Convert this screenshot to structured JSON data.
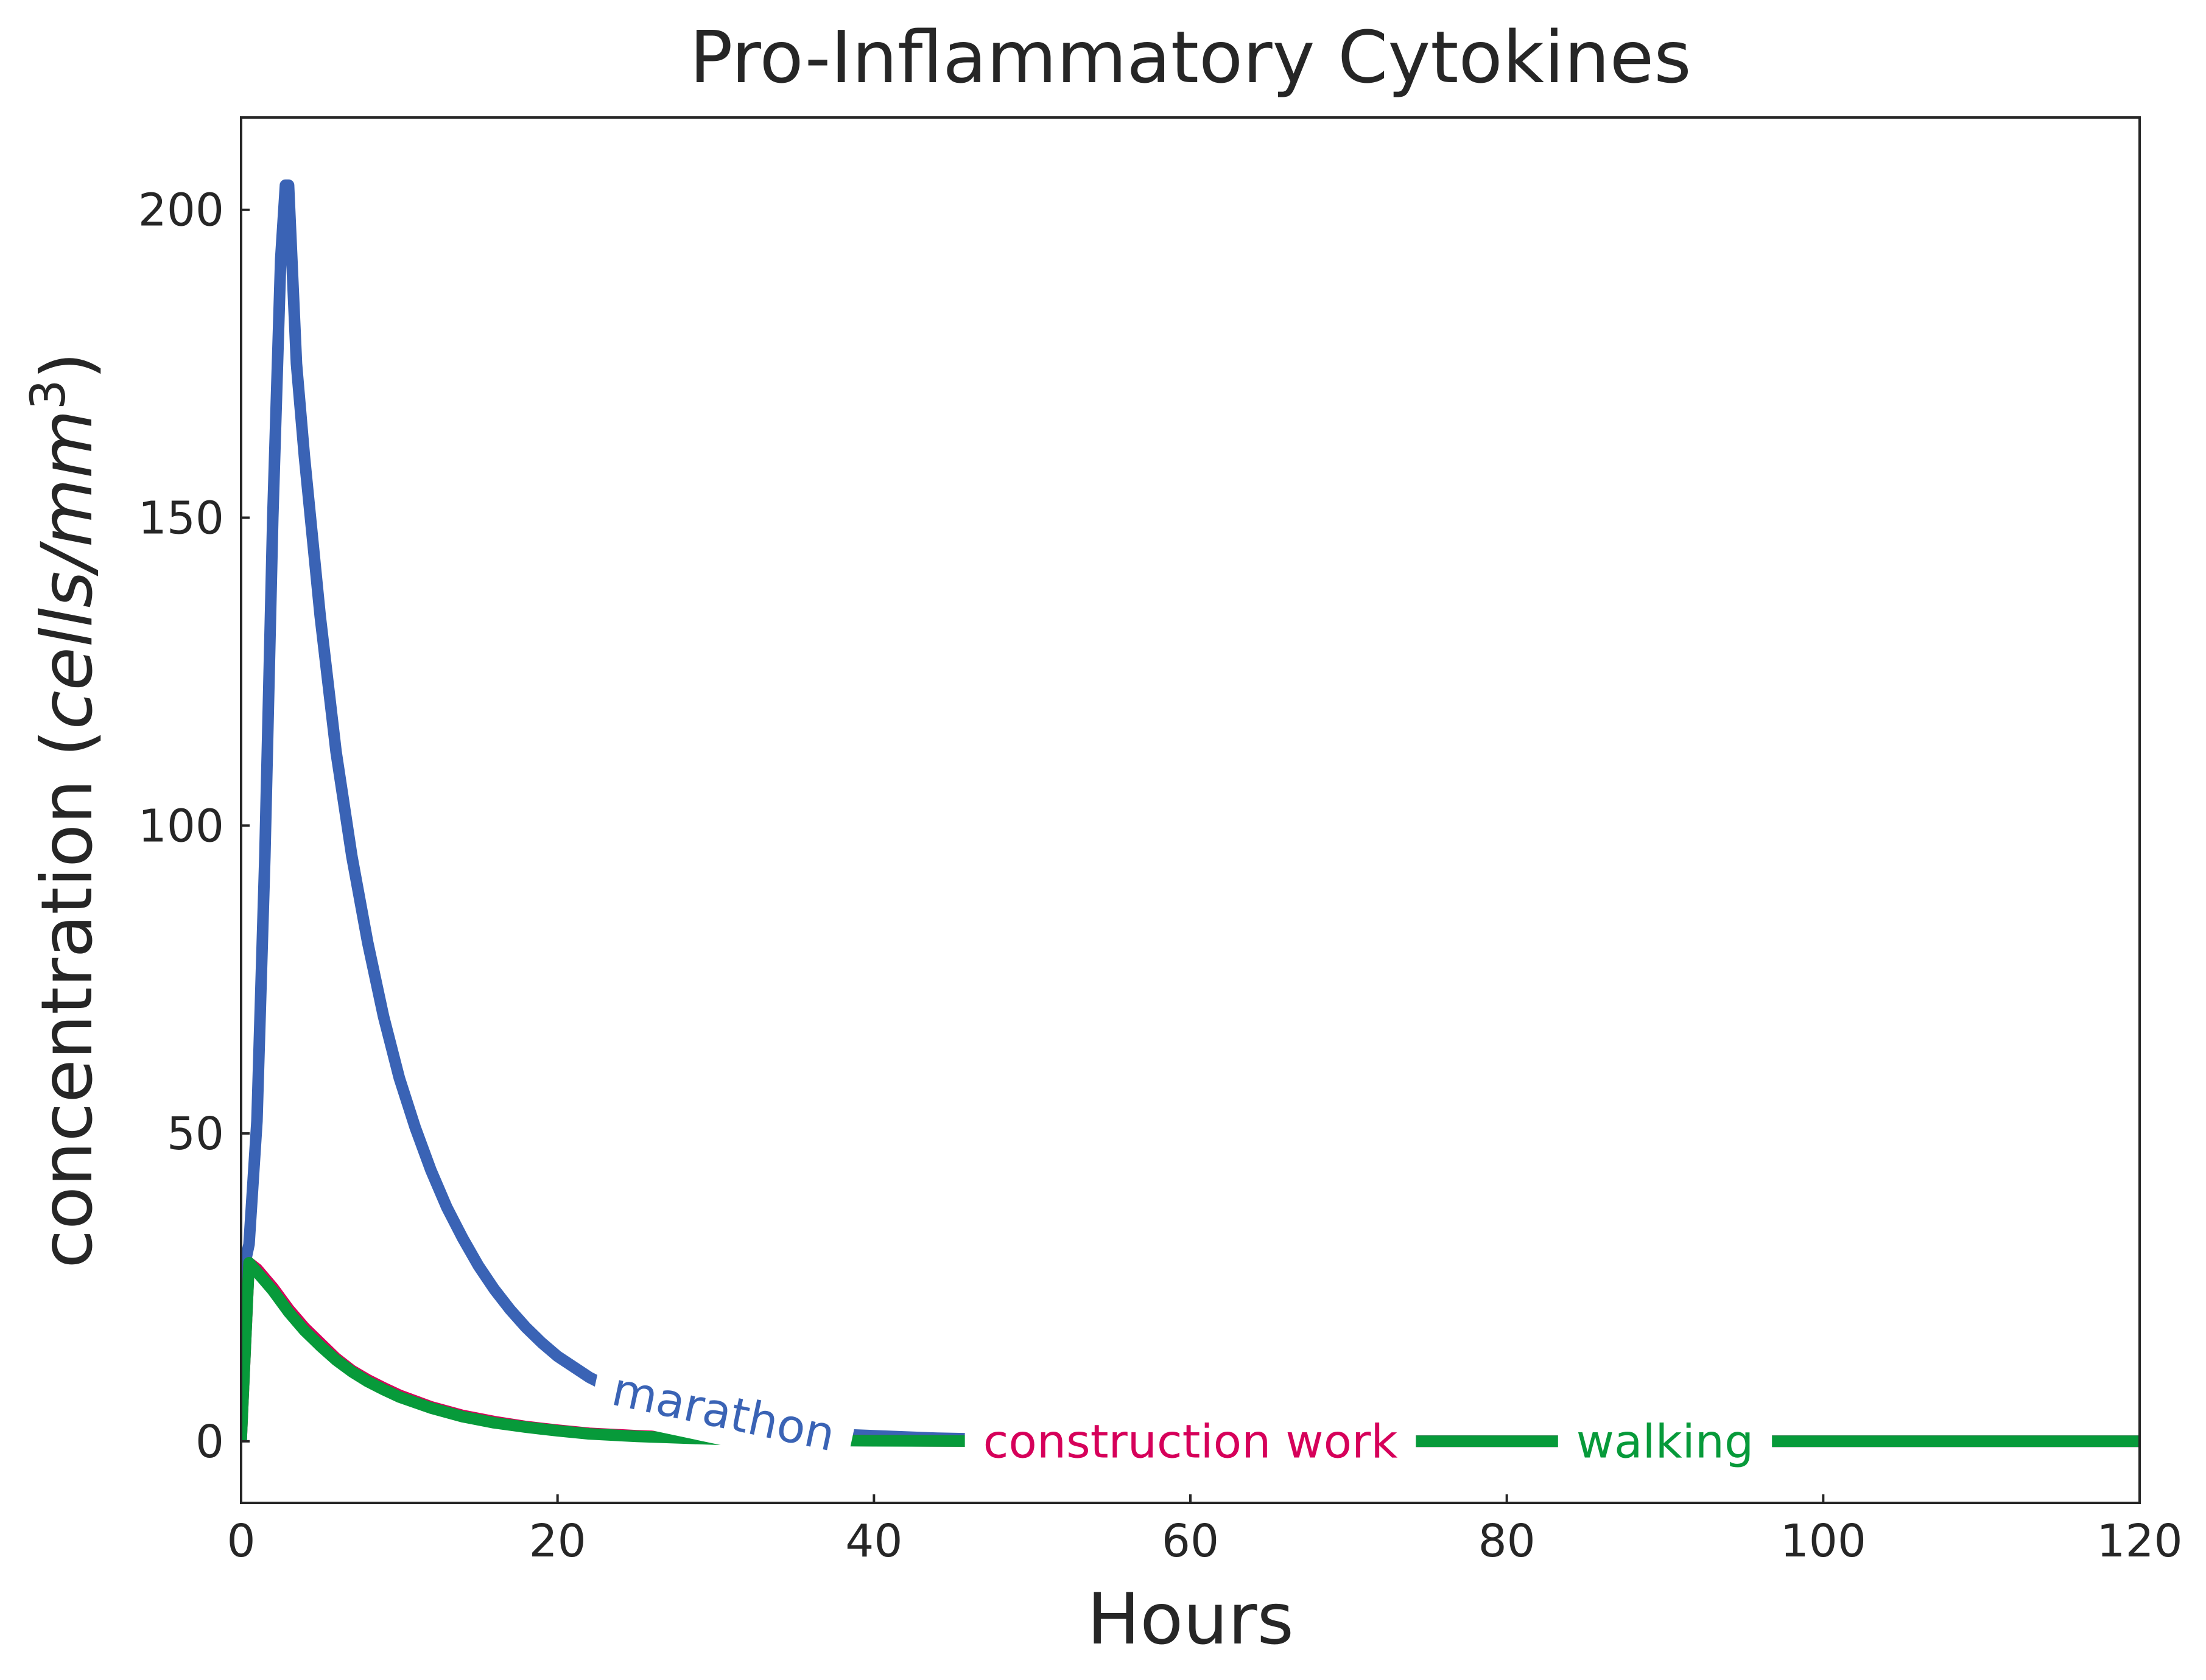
{
  "chart_data": {
    "type": "line",
    "title": "Pro-Inflammatory Cytokines",
    "xlabel": "Hours",
    "ylabel_main": "concentration (",
    "ylabel_unit": "cells/mm",
    "ylabel_exp": "3",
    "ylabel_close": ")",
    "xlim": [
      0,
      120
    ],
    "ylim": [
      -10,
      215
    ],
    "xticks": [
      0,
      20,
      40,
      60,
      80,
      100,
      120
    ],
    "yticks": [
      0,
      50,
      100,
      150,
      200
    ],
    "grid": false,
    "legend": "inline labels on curves",
    "series": [
      {
        "name": "marathon",
        "color": "#3a63b5",
        "x": [
          0,
          0.25,
          0.5,
          1,
          1.5,
          2,
          2.5,
          2.8,
          3,
          3.5,
          4,
          5,
          6,
          7,
          8,
          9,
          10,
          11,
          12,
          13,
          14,
          15,
          16,
          17,
          18,
          19,
          20,
          22,
          24,
          26,
          28,
          30,
          32,
          35,
          38,
          40,
          44,
          50,
          60,
          70,
          80,
          90,
          100,
          110,
          120
        ],
        "y": [
          0,
          29,
          32,
          52,
          95,
          150,
          192,
          204,
          204,
          175,
          160,
          134,
          112,
          95,
          81,
          69,
          59,
          51,
          44,
          38,
          33,
          28.5,
          24.7,
          21.4,
          18.5,
          16,
          13.8,
          10.4,
          7.8,
          5.8,
          4.4,
          3.3,
          2.5,
          1.6,
          1.1,
          0.9,
          0.5,
          0.2,
          0.05,
          0.02,
          0.01,
          0,
          0,
          0,
          0
        ]
      },
      {
        "name": "construction work",
        "color": "#d6005a",
        "x": [
          0,
          0.5,
          1,
          2,
          3,
          4,
          5,
          6,
          7,
          8,
          9,
          10,
          12,
          14,
          16,
          18,
          20,
          22,
          25,
          30,
          35,
          40,
          50,
          60,
          70,
          80,
          90,
          100,
          110,
          120
        ],
        "y": [
          0,
          29,
          28,
          25,
          21.5,
          18.5,
          16,
          13.5,
          11.5,
          10,
          8.7,
          7.5,
          5.6,
          4.2,
          3.2,
          2.4,
          1.8,
          1.3,
          0.9,
          0.4,
          0.2,
          0.1,
          0.02,
          0,
          0,
          0,
          0,
          0,
          0,
          0
        ]
      },
      {
        "name": "walking",
        "color": "#079a3a",
        "x": [
          0,
          0.5,
          1,
          2,
          3,
          4,
          5,
          6,
          7,
          8,
          9,
          10,
          12,
          14,
          16,
          18,
          20,
          22,
          25,
          30,
          35,
          40,
          50,
          60,
          70,
          80,
          90,
          100,
          110,
          120
        ],
        "y": [
          0,
          29,
          27.5,
          24.5,
          21,
          18,
          15.5,
          13.2,
          11.3,
          9.7,
          8.4,
          7.2,
          5.4,
          4,
          3,
          2.3,
          1.7,
          1.2,
          0.8,
          0.35,
          0.15,
          0.08,
          0.01,
          0,
          0,
          0,
          0,
          0,
          0,
          0
        ]
      }
    ],
    "inline_labels": [
      {
        "series": "marathon",
        "text": "marathon",
        "x": 30.5,
        "y": 4.8
      },
      {
        "series": "construction work",
        "text": "construction work",
        "x": 60,
        "y": 0
      },
      {
        "series": "walking",
        "text": "walking",
        "x": 90,
        "y": 0
      }
    ]
  }
}
